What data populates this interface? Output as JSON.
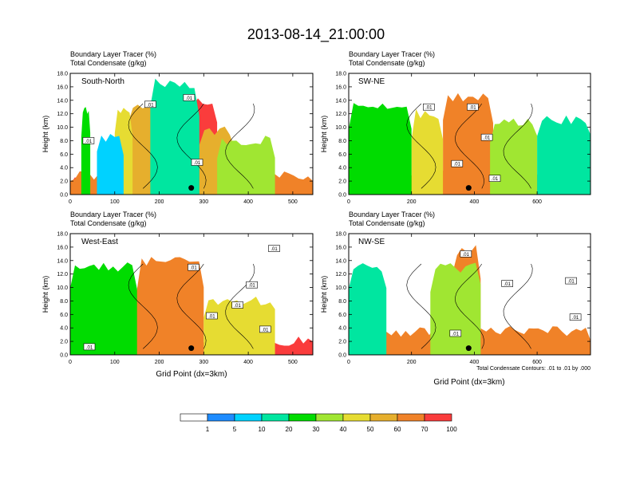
{
  "main_title": "2013-08-14_21:00:00",
  "panel_header_line1": "Boundary Layer Tracer    (%)",
  "panel_header_line2": "Total Condensate   (g/kg)",
  "colors": {
    "levels": [
      "#ffffff",
      "#1e8cff",
      "#00d2ff",
      "#00e6a0",
      "#00dc00",
      "#a0e632",
      "#e6dc32",
      "#e6af2d",
      "#f08228",
      "#fa3c3c"
    ],
    "contour": "#000000"
  },
  "colorbar_labels": [
    "1",
    "5",
    "10",
    "20",
    "30",
    "40",
    "50",
    "60",
    "70",
    "100"
  ],
  "footnote": "Total Condensate Contours: .01 to .01 by .000",
  "chart_data": [
    {
      "type": "heatmap",
      "panel": "South-North",
      "title": "South-North",
      "header": [
        "Boundary Layer Tracer    (%)",
        "Total Condensate   (g/kg)"
      ],
      "xlabel": "",
      "ylabel": "Height (km)",
      "xlim": [
        0,
        545
      ],
      "ylim": [
        0,
        18
      ],
      "xticks": [
        0,
        100,
        200,
        300,
        400,
        500
      ],
      "yticks": [
        0.0,
        2.0,
        4.0,
        6.0,
        8.0,
        10.0,
        12.0,
        14.0,
        16.0,
        18.0
      ],
      "ytick_labels": [
        "0.0",
        "2.0",
        "4.0",
        "6.0",
        "8.0",
        "10.0",
        "12.0",
        "14.0",
        "16.0",
        "18.0"
      ],
      "contour_labels": [
        {
          "text": ".01",
          "x": 180,
          "y": 13.4
        },
        {
          "text": ".01",
          "x": 267,
          "y": 14.4
        },
        {
          "text": ".01",
          "x": 41,
          "y": 8.0
        },
        {
          "text": ".01",
          "x": 285,
          "y": 4.8
        }
      ],
      "marker": {
        "x": 272,
        "y": 1.0
      },
      "features": [
        {
          "x0": 0,
          "x1": 545,
          "top": 1.8,
          "level": 9
        },
        {
          "x0": 0,
          "x1": 545,
          "top": 3.0,
          "level": 8
        },
        {
          "x0": 190,
          "x1": 330,
          "top": 14.0,
          "level": 9
        },
        {
          "x0": 130,
          "x1": 195,
          "top": 13.5,
          "level": 7
        },
        {
          "x0": 100,
          "x1": 140,
          "top": 12.5,
          "level": 6
        },
        {
          "x0": 290,
          "x1": 370,
          "top": 9.5,
          "level": 7
        },
        {
          "x0": 330,
          "x1": 460,
          "top": 8.0,
          "level": 5
        },
        {
          "x0": 180,
          "x1": 290,
          "top": 16.5,
          "level": 3
        },
        {
          "x0": 25,
          "x1": 45,
          "top": 12.5,
          "level": 4
        },
        {
          "x0": 60,
          "x1": 120,
          "top": 8.5,
          "level": 2
        }
      ]
    },
    {
      "type": "heatmap",
      "panel": "SW-NE",
      "title": "SW-NE",
      "header": [
        "Boundary Layer Tracer    (%)",
        "Total Condensate   (g/kg)"
      ],
      "xlabel": "",
      "ylabel": "Height (km)",
      "xlim": [
        0,
        770
      ],
      "ylim": [
        0,
        18
      ],
      "xticks": [
        0,
        200,
        400,
        600
      ],
      "yticks": [
        0.0,
        2.0,
        4.0,
        6.0,
        8.0,
        10.0,
        12.0,
        14.0,
        16.0,
        18.0
      ],
      "ytick_labels": [
        "0.0",
        "2.0",
        "4.0",
        "6.0",
        "8.0",
        "10.0",
        "12.0",
        "14.0",
        "16.0",
        "18.0"
      ],
      "contour_labels": [
        {
          "text": ".01",
          "x": 255,
          "y": 13.0
        },
        {
          "text": ".01",
          "x": 395,
          "y": 13.0
        },
        {
          "text": ".01",
          "x": 440,
          "y": 8.5
        },
        {
          "text": ".01",
          "x": 345,
          "y": 4.6
        },
        {
          "text": ".01",
          "x": 465,
          "y": 2.4
        }
      ],
      "marker": {
        "x": 382,
        "y": 1.0
      },
      "features": [
        {
          "x0": 0,
          "x1": 770,
          "top": 1.8,
          "level": 9
        },
        {
          "x0": 0,
          "x1": 770,
          "top": 3.0,
          "level": 8
        },
        {
          "x0": 300,
          "x1": 460,
          "top": 14.5,
          "level": 8
        },
        {
          "x0": 200,
          "x1": 300,
          "top": 12.0,
          "level": 6
        },
        {
          "x0": 450,
          "x1": 600,
          "top": 11.0,
          "level": 5
        },
        {
          "x0": 0,
          "x1": 200,
          "top": 13.0,
          "level": 4
        },
        {
          "x0": 600,
          "x1": 770,
          "top": 11.0,
          "level": 3
        }
      ]
    },
    {
      "type": "heatmap",
      "panel": "West-East",
      "title": "West-East",
      "header": [
        "Boundary Layer Tracer    (%)",
        "Total Condensate   (g/kg)"
      ],
      "xlabel": "Grid Point (dx=3km)",
      "ylabel": "Height (km)",
      "xlim": [
        0,
        545
      ],
      "ylim": [
        0,
        18
      ],
      "xticks": [
        0,
        100,
        200,
        300,
        400,
        500
      ],
      "yticks": [
        0.0,
        2.0,
        4.0,
        6.0,
        8.0,
        10.0,
        12.0,
        14.0,
        16.0,
        18.0
      ],
      "ytick_labels": [
        "0.0",
        "2.0",
        "4.0",
        "6.0",
        "8.0",
        "10.0",
        "12.0",
        "14.0",
        "16.0",
        "18.0"
      ],
      "contour_labels": [
        {
          "text": ".01",
          "x": 277,
          "y": 13.0
        },
        {
          "text": ".01",
          "x": 458,
          "y": 15.8
        },
        {
          "text": ".01",
          "x": 408,
          "y": 10.4
        },
        {
          "text": ".01",
          "x": 376,
          "y": 7.4
        },
        {
          "text": ".01",
          "x": 318,
          "y": 5.8
        },
        {
          "text": ".01",
          "x": 438,
          "y": 3.8
        },
        {
          "text": ".01",
          "x": 43,
          "y": 1.2
        }
      ],
      "marker": {
        "x": 272,
        "y": 1.0
      },
      "features": [
        {
          "x0": 0,
          "x1": 545,
          "top": 2.0,
          "level": 9
        },
        {
          "x0": 0,
          "x1": 200,
          "top": 9.0,
          "level": 8
        },
        {
          "x0": 150,
          "x1": 300,
          "top": 14.0,
          "level": 8
        },
        {
          "x0": 300,
          "x1": 460,
          "top": 8.0,
          "level": 6
        },
        {
          "x0": 0,
          "x1": 150,
          "top": 13.0,
          "level": 4
        }
      ]
    },
    {
      "type": "heatmap",
      "panel": "NW-SE",
      "title": "NW-SE",
      "header": [
        "Boundary Layer Tracer    (%)",
        "Total Condensate   (g/kg)"
      ],
      "xlabel": "Grid Point (dx=3km)",
      "ylabel": "Height (km)",
      "xlim": [
        0,
        770
      ],
      "ylim": [
        0,
        18
      ],
      "xticks": [
        0,
        200,
        400,
        600
      ],
      "yticks": [
        0.0,
        2.0,
        4.0,
        6.0,
        8.0,
        10.0,
        12.0,
        14.0,
        16.0,
        18.0
      ],
      "ytick_labels": [
        "0.0",
        "2.0",
        "4.0",
        "6.0",
        "8.0",
        "10.0",
        "12.0",
        "14.0",
        "16.0",
        "18.0"
      ],
      "contour_labels": [
        {
          "text": ".01",
          "x": 373,
          "y": 15.0
        },
        {
          "text": ".01",
          "x": 505,
          "y": 10.6
        },
        {
          "text": ".01",
          "x": 708,
          "y": 11.0
        },
        {
          "text": ".01",
          "x": 722,
          "y": 5.6
        },
        {
          "text": ".01",
          "x": 340,
          "y": 3.2
        }
      ],
      "marker": {
        "x": 382,
        "y": 1.0
      },
      "features": [
        {
          "x0": 0,
          "x1": 770,
          "top": 2.0,
          "level": 9
        },
        {
          "x0": 0,
          "x1": 770,
          "top": 3.5,
          "level": 8
        },
        {
          "x0": 330,
          "x1": 420,
          "top": 15.5,
          "level": 8
        },
        {
          "x0": 260,
          "x1": 420,
          "top": 13.0,
          "level": 5
        },
        {
          "x0": 0,
          "x1": 120,
          "top": 13.0,
          "level": 3
        }
      ]
    }
  ]
}
